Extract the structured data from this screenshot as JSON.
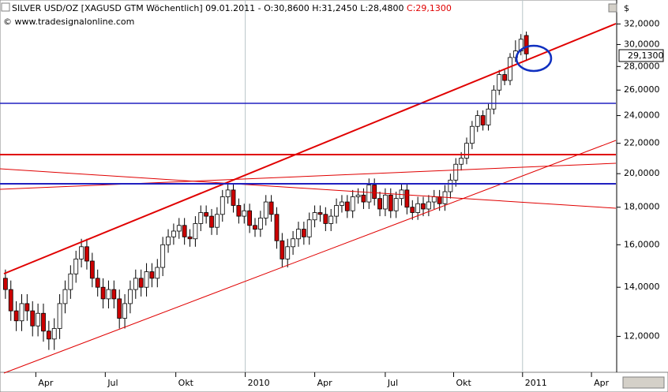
{
  "header": "SILVER USD/OZ [XAGUSD GTM  Wöchentlich] 09.01.2011 - O:30,8600 H:31,2450 L:28,4800 ",
  "header_close": "C:29,1300",
  "copyright": "© www.tradesignalonline.com",
  "chart_data": {
    "type": "candlestick",
    "y_unit": "$",
    "last_price_label": "29,1300",
    "log_scale": true,
    "up_color": "#ffffff",
    "down_color": "#cc0000",
    "outline_color": "#000000",
    "x": [
      0,
      1,
      2,
      3,
      4,
      5,
      6,
      7,
      8,
      9,
      10,
      11,
      12,
      13,
      14,
      15,
      16,
      17,
      18,
      19,
      20,
      21,
      22,
      23,
      24,
      25,
      26,
      27,
      28,
      29,
      30,
      31,
      32,
      33,
      34,
      35,
      36,
      37,
      38,
      39,
      40,
      41,
      42,
      43,
      44,
      45,
      46,
      47,
      48,
      49,
      50,
      51,
      52,
      53,
      54,
      55,
      56,
      57,
      58,
      59,
      60,
      61,
      62,
      63,
      64,
      65,
      66,
      67,
      68,
      69,
      70,
      71,
      72,
      73,
      74,
      75,
      76,
      77,
      78,
      79,
      80,
      81,
      82,
      83,
      84,
      85,
      86,
      87,
      88,
      89,
      90,
      91,
      92,
      93,
      94,
      95,
      96
    ],
    "open": [
      14.4,
      13.9,
      13.0,
      12.6,
      13.3,
      13.0,
      12.4,
      12.9,
      12.2,
      11.9,
      12.3,
      13.3,
      13.9,
      14.6,
      15.3,
      15.9,
      15.2,
      14.4,
      14.0,
      13.5,
      13.9,
      13.5,
      12.7,
      13.3,
      13.9,
      14.4,
      14.0,
      14.7,
      14.4,
      14.9,
      16.0,
      16.4,
      16.7,
      17.0,
      16.4,
      16.3,
      17.1,
      17.7,
      17.5,
      16.9,
      17.6,
      18.6,
      19.0,
      18.1,
      17.5,
      17.8,
      17.0,
      16.8,
      17.4,
      18.3,
      17.6,
      16.2,
      15.3,
      15.9,
      16.3,
      16.8,
      16.4,
      17.3,
      17.7,
      17.6,
      17.1,
      17.5,
      18.1,
      18.3,
      17.8,
      18.6,
      18.7,
      18.3,
      19.3,
      18.5,
      17.9,
      18.7,
      17.8,
      18.5,
      19.0,
      18.0,
      17.7,
      18.2,
      17.9,
      18.3,
      18.6,
      18.2,
      18.9,
      19.6,
      20.6,
      21.0,
      22.0,
      23.2,
      24.0,
      23.3,
      24.5,
      26.0,
      27.3,
      26.8,
      28.8,
      29.4,
      30.86
    ],
    "high": [
      14.8,
      14.3,
      13.4,
      13.7,
      13.7,
      13.4,
      13.3,
      13.3,
      12.6,
      12.7,
      13.7,
      14.3,
      15.0,
      15.7,
      16.3,
      16.3,
      15.6,
      14.8,
      14.4,
      14.3,
      14.3,
      13.9,
      13.7,
      14.3,
      14.8,
      14.8,
      15.1,
      15.1,
      15.3,
      16.4,
      16.8,
      17.1,
      17.4,
      17.4,
      16.8,
      17.5,
      18.1,
      18.1,
      17.9,
      18.0,
      19.0,
      19.4,
      19.4,
      18.5,
      18.2,
      18.2,
      17.4,
      17.8,
      18.7,
      18.7,
      18.0,
      16.6,
      16.3,
      16.7,
      17.2,
      17.2,
      17.7,
      18.1,
      18.1,
      18.0,
      17.9,
      18.5,
      18.7,
      18.7,
      19.0,
      19.1,
      19.1,
      19.7,
      19.7,
      18.9,
      19.1,
      19.1,
      18.9,
      19.4,
      19.4,
      18.4,
      18.6,
      18.6,
      18.7,
      19.0,
      19.0,
      19.3,
      20.0,
      21.0,
      21.4,
      22.4,
      23.6,
      24.4,
      24.4,
      24.9,
      26.4,
      27.7,
      27.7,
      29.2,
      30.4,
      31.0,
      31.245
    ],
    "low": [
      13.5,
      12.6,
      12.2,
      12.2,
      12.6,
      12.0,
      12.0,
      11.8,
      11.5,
      11.5,
      11.9,
      12.9,
      13.5,
      14.2,
      14.9,
      14.8,
      14.0,
      13.6,
      13.1,
      13.1,
      13.1,
      12.3,
      12.3,
      12.9,
      13.5,
      13.6,
      13.6,
      14.0,
      14.0,
      14.5,
      15.6,
      16.0,
      16.3,
      16.0,
      15.9,
      15.9,
      16.7,
      17.1,
      16.5,
      16.5,
      17.2,
      18.2,
      17.7,
      17.1,
      17.1,
      16.6,
      16.4,
      16.4,
      17.0,
      17.2,
      15.8,
      14.9,
      14.9,
      15.5,
      15.9,
      16.0,
      16.0,
      16.9,
      17.2,
      16.7,
      16.7,
      17.1,
      17.7,
      17.4,
      17.4,
      18.2,
      17.9,
      17.9,
      18.1,
      17.5,
      17.5,
      17.4,
      17.4,
      18.1,
      17.6,
      17.3,
      17.3,
      17.5,
      17.5,
      17.9,
      17.8,
      17.8,
      18.5,
      19.2,
      20.2,
      20.6,
      21.6,
      22.8,
      22.9,
      22.9,
      24.1,
      25.6,
      26.4,
      26.4,
      28.4,
      29.0,
      28.48
    ],
    "close": [
      13.9,
      13.0,
      12.6,
      13.3,
      13.0,
      12.4,
      12.9,
      12.2,
      11.9,
      12.3,
      13.3,
      13.9,
      14.6,
      15.3,
      15.9,
      15.2,
      14.4,
      14.0,
      13.5,
      13.9,
      13.5,
      12.7,
      13.3,
      13.9,
      14.4,
      14.0,
      14.7,
      14.4,
      14.9,
      16.0,
      16.4,
      16.7,
      17.0,
      16.4,
      16.3,
      17.1,
      17.7,
      17.5,
      16.9,
      17.6,
      18.6,
      19.0,
      18.1,
      17.5,
      17.8,
      17.0,
      16.8,
      17.4,
      18.3,
      17.6,
      16.2,
      15.3,
      15.9,
      16.3,
      16.8,
      16.4,
      17.3,
      17.7,
      17.6,
      17.1,
      17.5,
      18.1,
      18.3,
      17.8,
      18.6,
      18.7,
      18.3,
      19.3,
      18.5,
      17.9,
      18.7,
      17.8,
      18.5,
      19.0,
      18.0,
      17.7,
      18.2,
      17.9,
      18.3,
      18.6,
      18.2,
      18.9,
      19.6,
      20.6,
      21.0,
      22.0,
      23.2,
      24.0,
      23.3,
      24.5,
      26.0,
      27.3,
      26.8,
      28.8,
      29.4,
      30.5,
      29.13
    ],
    "xlim": [
      -1,
      112.5
    ],
    "xticks": [
      {
        "value": 5.6,
        "label": "Apr"
      },
      {
        "value": 18.4,
        "label": "Jul"
      },
      {
        "value": 31.4,
        "label": "Okt"
      },
      {
        "value": 44.2,
        "label": "2010"
      },
      {
        "value": 57,
        "label": "Apr"
      },
      {
        "value": 70,
        "label": "Jul"
      },
      {
        "value": 82.6,
        "label": "Okt"
      },
      {
        "value": 95.3,
        "label": "2011"
      },
      {
        "value": 108,
        "label": "Apr"
      }
    ],
    "ylim": [
      10.72,
      34.5
    ],
    "yticks": [
      {
        "value": 12,
        "label": "12,0000"
      },
      {
        "value": 14,
        "label": "14,0000"
      },
      {
        "value": 16,
        "label": "16,0000"
      },
      {
        "value": 18,
        "label": "18,0000"
      },
      {
        "value": 20,
        "label": "20,0000"
      },
      {
        "value": 22,
        "label": "22,0000"
      },
      {
        "value": 24,
        "label": "24,0000"
      },
      {
        "value": 26,
        "label": "26,0000"
      },
      {
        "value": 28,
        "label": "28,0000"
      },
      {
        "value": 30,
        "label": "30,0000"
      },
      {
        "value": 32,
        "label": "32,0000"
      }
    ]
  }
}
